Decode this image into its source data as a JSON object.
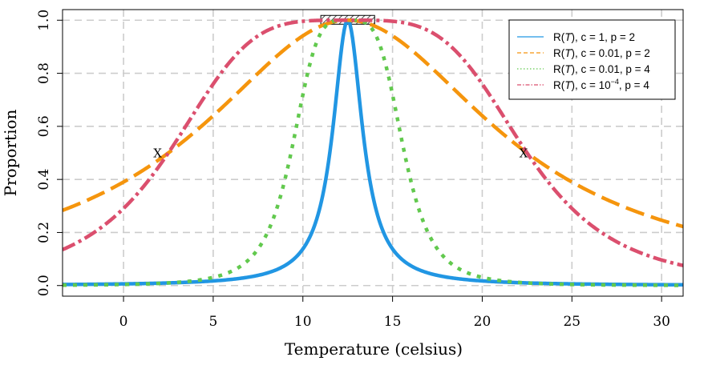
{
  "chart_data": {
    "type": "line",
    "title": "",
    "xlabel": "Temperature (celsius)",
    "ylabel": "Proportion",
    "xlim": [
      -3.4,
      31.2
    ],
    "ylim": [
      -0.04,
      1.04
    ],
    "xticks": [
      0,
      5,
      10,
      15,
      20,
      25,
      30
    ],
    "yticks": [
      0.0,
      0.2,
      0.4,
      0.6,
      0.8,
      1.0
    ],
    "xtick_labels": [
      "0",
      "5",
      "10",
      "15",
      "20",
      "25",
      "30"
    ],
    "ytick_labels": [
      "0.0",
      "0.2",
      "0.4",
      "0.6",
      "0.8",
      "1.0"
    ],
    "grid": true,
    "legend_position": "top-right",
    "optimum_range": [
      11,
      14
    ],
    "series": [
      {
        "name": "R(T), c = 1, p = 2",
        "label_parts": [
          "R(",
          "T",
          "), c = 1, p = 2",
          "",
          ""
        ],
        "color": "#2196E3",
        "dash": "solid",
        "c": 1,
        "p": 2
      },
      {
        "name": "R(T), c = 0.01, p = 2",
        "label_parts": [
          "R(",
          "T",
          "), c = 0.01, p = 2",
          "",
          ""
        ],
        "color": "#F5950D",
        "dash": "long",
        "c": 0.01,
        "p": 2
      },
      {
        "name": "R(T), c = 0.01, p = 4",
        "label_parts": [
          "R(",
          "T",
          "), c = 0.01, p = 4",
          "",
          ""
        ],
        "color": "#62C94E",
        "dash": "dot",
        "c": 0.01,
        "p": 4
      },
      {
        "name": "R(T), c = 10^-4, p = 4",
        "label_parts": [
          "R(",
          "T",
          "), c = 10",
          "−4",
          ", p = 4"
        ],
        "color": "#DB4F6E",
        "dash": "dashdot",
        "c": 0.0001,
        "p": 4
      }
    ],
    "annotations": [
      {
        "text": "X",
        "x": 1.9,
        "y": 0.495
      },
      {
        "text": "X",
        "x": 22.3,
        "y": 0.495
      }
    ]
  }
}
